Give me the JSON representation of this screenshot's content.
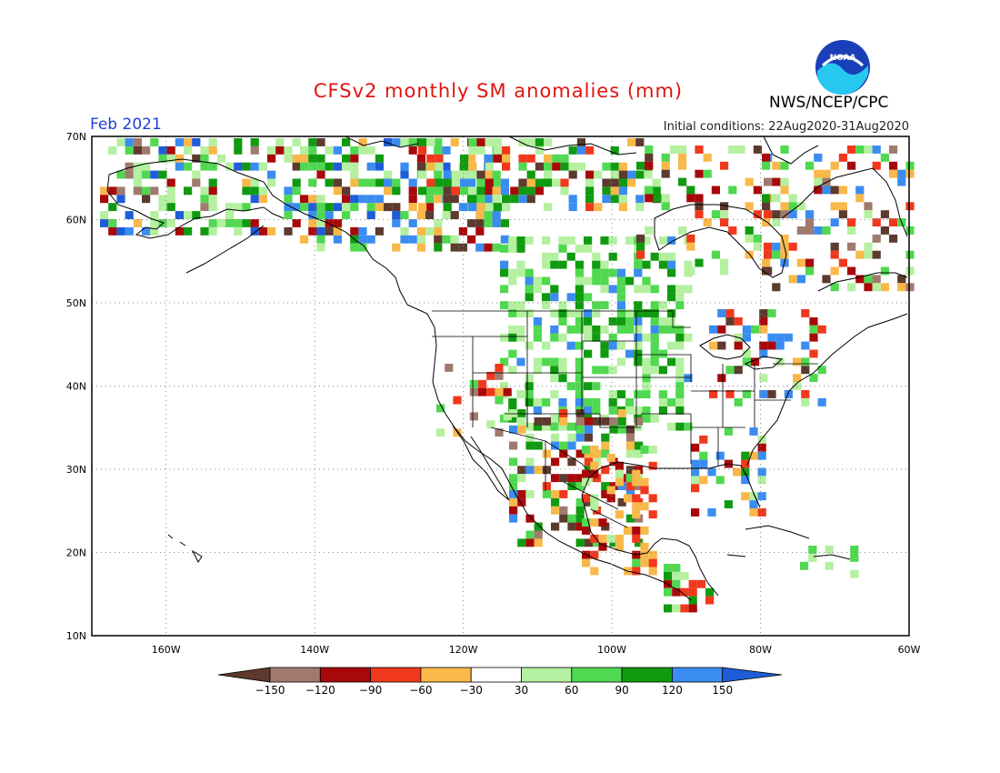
{
  "header": {
    "title": "CFSv2 monthly SM anomalies (mm)",
    "valid_month": "Feb 2021",
    "initial_conditions": "Initial conditions: 22Aug2020-31Aug2020",
    "agency": "NWS/NCEP/CPC",
    "logo_text": "NOAA"
  },
  "map": {
    "lon_range": [
      -170,
      -60
    ],
    "lat_range": [
      10,
      70
    ],
    "lat_ticks": [
      "70N",
      "60N",
      "50N",
      "40N",
      "30N",
      "20N",
      "10N"
    ],
    "lon_ticks": [
      "160W",
      "140W",
      "120W",
      "100W",
      "80W",
      "60W"
    ]
  },
  "legend": {
    "labels": [
      "-150",
      "-120",
      "-90",
      "-60",
      "-30",
      "30",
      "60",
      "90",
      "120",
      "150"
    ],
    "colors": [
      "#5c3a2e",
      "#a07a6e",
      "#a8080a",
      "#f0381c",
      "#f8b84a",
      "#ffffff",
      "#b4f0a0",
      "#50d850",
      "#109a10",
      "#3a8cf0",
      "#1e5cd8"
    ]
  }
}
